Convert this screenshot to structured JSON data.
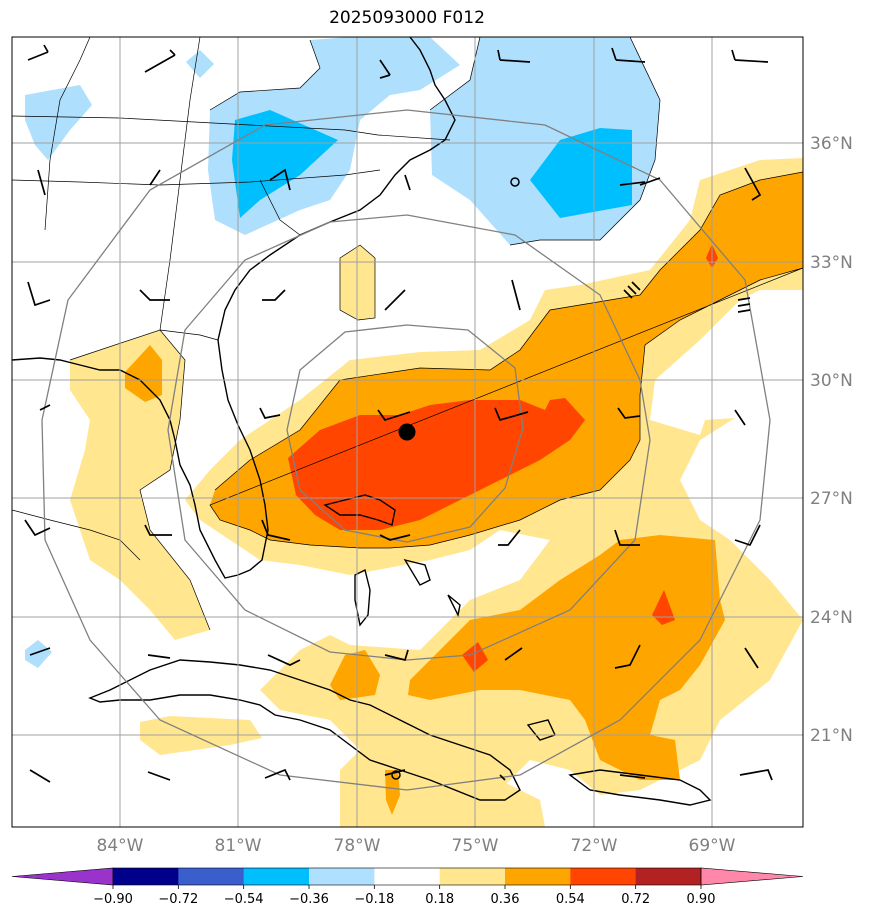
{
  "title": "2025093000 F012",
  "lat_labels": [
    "36°N",
    "33°N",
    "30°N",
    "27°N",
    "24°N",
    "21°N"
  ],
  "lon_labels": [
    "84°W",
    "81°W",
    "78°W",
    "75°W",
    "72°W",
    "69°W"
  ],
  "colorbar": {
    "ticks": [
      "−0.90",
      "−0.72",
      "−0.54",
      "−0.36",
      "−0.18",
      "0.18",
      "0.36",
      "0.54",
      "0.72",
      "0.90"
    ],
    "colors": [
      "#9933cc",
      "#00008b",
      "#3a5fcd",
      "#00bfff",
      "#b0e0ff",
      "#ffffff",
      "#ffe68f",
      "#ffa500",
      "#ff4500",
      "#b22222",
      "#ff88aa"
    ]
  },
  "colors": {
    "light_blue": "#aedffd",
    "blue": "#00bfff",
    "light_yellow": "#ffe68f",
    "orange": "#ffa500",
    "red_orange": "#ff4500",
    "grid": "#a0a0a0",
    "range_rings": "#808080"
  },
  "storm_center_marker": "filled-black-circle"
}
